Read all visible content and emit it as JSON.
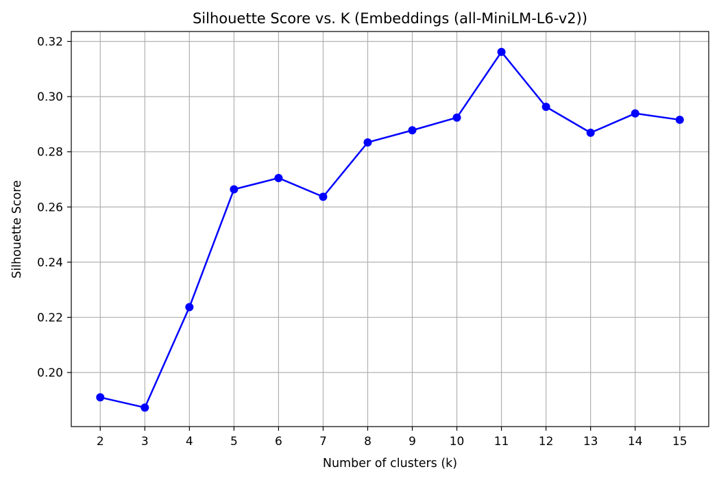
{
  "chart_data": {
    "type": "line",
    "title": "Silhouette Score vs. K (Embeddings (all-MiniLM-L6-v2))",
    "xlabel": "Number of clusters (k)",
    "ylabel": "Silhouette Score",
    "x": [
      2,
      3,
      4,
      5,
      6,
      7,
      8,
      9,
      10,
      11,
      12,
      13,
      14,
      15
    ],
    "series": [
      {
        "values": [
          0.191,
          0.1873,
          0.2237,
          0.2664,
          0.2705,
          0.2637,
          0.2834,
          0.2878,
          0.2924,
          0.3162,
          0.2963,
          0.2869,
          0.2939,
          0.2916
        ],
        "color": "#0000ff",
        "marker": "circle"
      }
    ],
    "xticks": [
      "2",
      "3",
      "4",
      "5",
      "6",
      "7",
      "8",
      "9",
      "10",
      "11",
      "12",
      "13",
      "14",
      "15"
    ],
    "yticks": [
      "0.20",
      "0.22",
      "0.24",
      "0.26",
      "0.28",
      "0.30",
      "0.32"
    ],
    "ylim": [
      0.1804,
      0.3236
    ],
    "xlim": [
      1.35,
      15.65
    ],
    "grid": true,
    "grid_color": "#b0b0b0",
    "legend": "none"
  }
}
